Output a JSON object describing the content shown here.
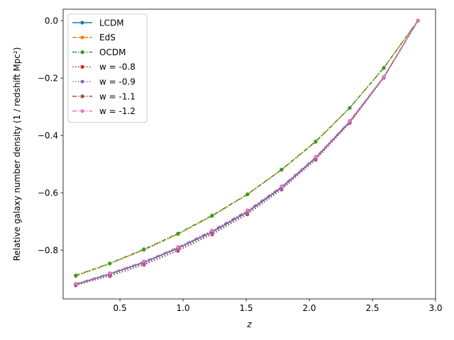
{
  "chart_data": {
    "type": "line",
    "title": "",
    "xlabel": "z",
    "ylabel": "Relative galaxy number density (1 / redshift Mpc²)",
    "xlim": [
      0.05,
      3.0
    ],
    "ylim": [
      -0.97,
      0.04
    ],
    "xticks": [
      0.5,
      1.0,
      1.5,
      2.0,
      2.5,
      3.0
    ],
    "xtick_labels": [
      "0.5",
      "1.0",
      "1.5",
      "2.0",
      "2.5",
      "3.0"
    ],
    "yticks": [
      0.0,
      -0.2,
      -0.4,
      -0.6,
      -0.8
    ],
    "ytick_labels": [
      "0.0",
      "−0.2",
      "−0.4",
      "−0.6",
      "−0.8"
    ],
    "grid": false,
    "legend_position": "top-left",
    "x": [
      0.15,
      0.42,
      0.69,
      0.96,
      1.23,
      1.51,
      1.78,
      2.05,
      2.32,
      2.59,
      2.86
    ],
    "series": [
      {
        "name": "LCDM",
        "color": "#1f77b4",
        "dash": "solid",
        "values": [
          -0.92,
          -0.883,
          -0.843,
          -0.793,
          -0.737,
          -0.667,
          -0.582,
          -0.479,
          -0.353,
          -0.197,
          0.0
        ]
      },
      {
        "name": "EdS",
        "color": "#ff7f0e",
        "dash": "dashed",
        "values": [
          -0.89,
          -0.847,
          -0.799,
          -0.744,
          -0.681,
          -0.606,
          -0.52,
          -0.423,
          -0.304,
          -0.164,
          0.0
        ]
      },
      {
        "name": "OCDM",
        "color": "#2ca02c",
        "dash": "dashdot",
        "values": [
          -0.888,
          -0.846,
          -0.797,
          -0.742,
          -0.679,
          -0.605,
          -0.519,
          -0.421,
          -0.304,
          -0.165,
          0.0
        ]
      },
      {
        "name": "w = -0.8",
        "color": "#d62728",
        "dash": "dotted",
        "values": [
          -0.923,
          -0.89,
          -0.851,
          -0.802,
          -0.745,
          -0.675,
          -0.589,
          -0.485,
          -0.357,
          -0.199,
          0.0
        ]
      },
      {
        "name": "w = -0.9",
        "color": "#9467bd",
        "dash": "dotted",
        "values": [
          -0.923,
          -0.887,
          -0.848,
          -0.798,
          -0.741,
          -0.671,
          -0.586,
          -0.482,
          -0.355,
          -0.198,
          0.0
        ]
      },
      {
        "name": "w = -1.1",
        "color": "#8c564b",
        "dash": "dashdot",
        "values": [
          -0.919,
          -0.882,
          -0.841,
          -0.791,
          -0.734,
          -0.664,
          -0.579,
          -0.477,
          -0.351,
          -0.196,
          0.0
        ]
      },
      {
        "name": "w = -1.2",
        "color": "#e377c2",
        "dash": "dashdot",
        "values": [
          -0.917,
          -0.88,
          -0.839,
          -0.789,
          -0.731,
          -0.661,
          -0.577,
          -0.475,
          -0.349,
          -0.195,
          0.0
        ]
      }
    ]
  }
}
